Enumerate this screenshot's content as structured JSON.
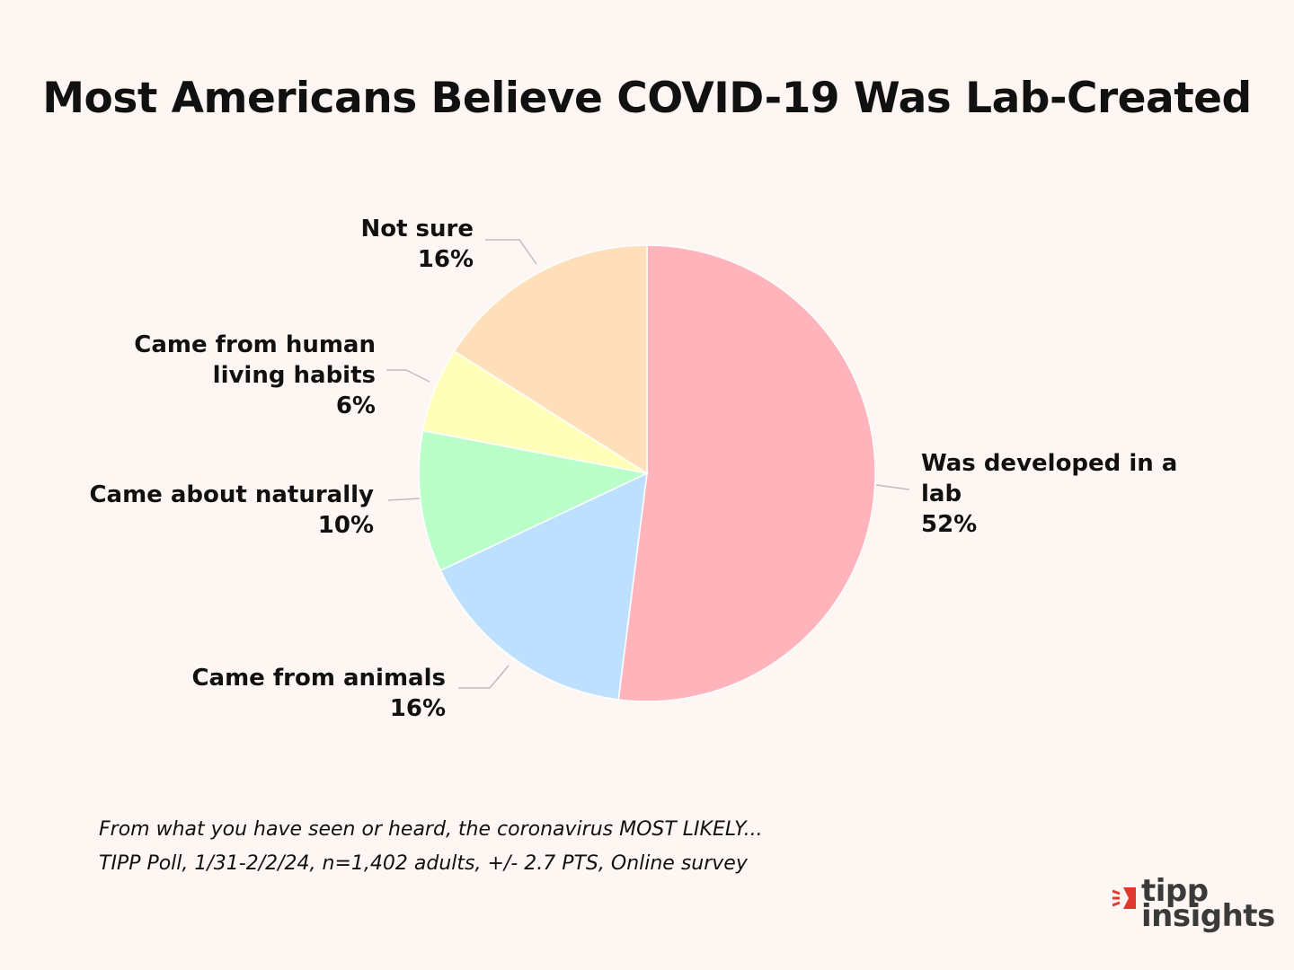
{
  "chart_data": {
    "type": "pie",
    "title": "Most Americans Believe COVID-19 Was Lab-Created",
    "slices": [
      {
        "lines": [
          "Was developed in a",
          "lab"
        ],
        "value": 52,
        "value_label": "52%",
        "color": "#ffb3ba"
      },
      {
        "lines": [
          "Came from animals"
        ],
        "value": 16,
        "value_label": "16%",
        "color": "#bde0fe"
      },
      {
        "lines": [
          "Came about naturally"
        ],
        "value": 10,
        "value_label": "10%",
        "color": "#baffc9"
      },
      {
        "lines": [
          "Came from human",
          "living habits"
        ],
        "value": 6,
        "value_label": "6%",
        "color": "#ffffba"
      },
      {
        "lines": [
          "Not sure"
        ],
        "value": 16,
        "value_label": "16%",
        "color": "#ffdfba"
      }
    ],
    "start_angle_deg": 0,
    "direction": "clockwise"
  },
  "footnote": {
    "question": "From what you have seen or heard, the coronavirus MOST LIKELY...",
    "source": "TIPP Poll, 1/31-2/2/24, n=1,402 adults, +/- 2.7 PTS, Online survey"
  },
  "logo": {
    "line1": "tipp",
    "line2": "insights",
    "accent_color": "#e03a2f"
  }
}
